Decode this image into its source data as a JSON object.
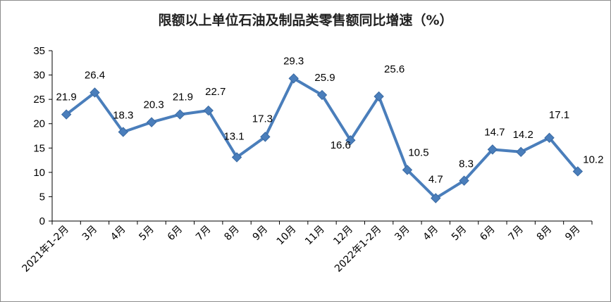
{
  "chart_data": {
    "type": "line",
    "title": "限额以上单位石油及制品类零售额同比增速（%）",
    "xlabel": "",
    "ylabel": "",
    "categories": [
      "2021年1-2月",
      "3月",
      "4月",
      "5月",
      "6月",
      "7月",
      "8月",
      "9月",
      "10月",
      "11月",
      "12月",
      "2022年1-2月",
      "3月",
      "4月",
      "5月",
      "6月",
      "7月",
      "8月",
      "9月"
    ],
    "series": [
      {
        "values": [
          21.9,
          26.4,
          18.3,
          20.3,
          21.9,
          22.7,
          13.1,
          17.3,
          29.3,
          25.9,
          16.6,
          25.6,
          10.5,
          4.7,
          8.3,
          14.7,
          14.2,
          17.1,
          10.2
        ]
      }
    ],
    "ylim": [
      0,
      35
    ],
    "yticks": [
      0,
      5,
      10,
      15,
      20,
      25,
      30,
      35
    ],
    "grid": false,
    "legend": "none",
    "colors": {
      "line": "#4a7ebb",
      "marker": "#4a7ebb",
      "axis": "#000000"
    }
  }
}
